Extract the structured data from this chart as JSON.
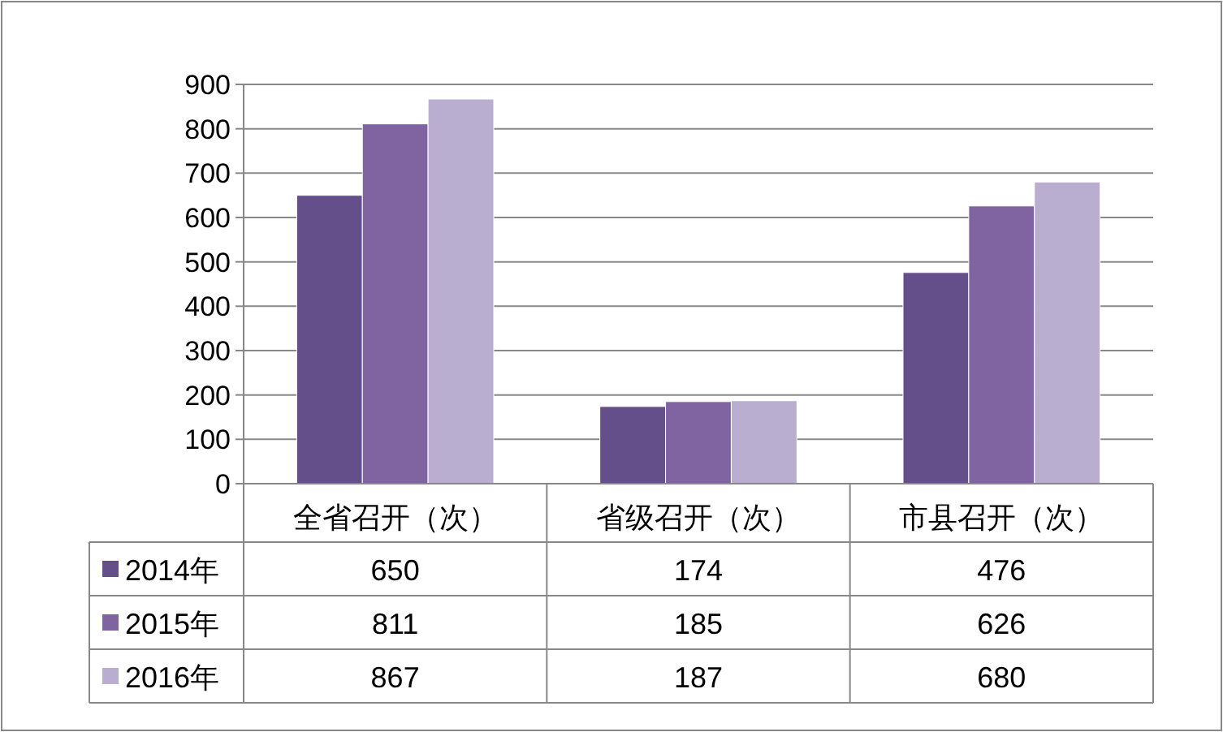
{
  "chart_data": {
    "type": "bar",
    "categories": [
      "全省召开（次）",
      "省级召开（次）",
      "市县召开（次）"
    ],
    "series": [
      {
        "name": "2014年",
        "color": "#654f8a",
        "values": [
          650,
          174,
          476
        ]
      },
      {
        "name": "2015年",
        "color": "#8064a2",
        "values": [
          811,
          185,
          626
        ]
      },
      {
        "name": "2016年",
        "color": "#b9aed0",
        "values": [
          867,
          187,
          680
        ]
      }
    ],
    "ylim": [
      0,
      900
    ],
    "yticks": [
      0,
      100,
      200,
      300,
      400,
      500,
      600,
      700,
      800,
      900
    ],
    "grid": "y",
    "legend": "bottom",
    "data_labels": true
  }
}
